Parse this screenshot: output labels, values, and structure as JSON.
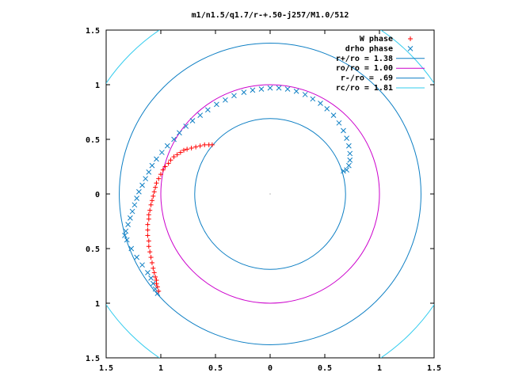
{
  "chart_data": {
    "type": "scatter",
    "title": "m1/n1.5/q1.7/r-+.50-j257/M1.0/512",
    "xlabel": "",
    "ylabel": "",
    "xlim": [
      -1.5,
      1.5
    ],
    "ylim": [
      -1.5,
      1.5
    ],
    "x_ticks": [
      -1.5,
      -1,
      -0.5,
      0,
      0.5,
      1,
      1.5
    ],
    "y_ticks": [
      -1.5,
      -1,
      -0.5,
      0,
      0.5,
      1,
      1.5
    ],
    "x_tick_labels": [
      "1.5",
      "1",
      "0.5",
      "0",
      "0.5",
      "1",
      "1.5"
    ],
    "y_tick_labels": [
      "1.5",
      "1",
      "0.5",
      "0",
      "0.5",
      "1",
      "1.5"
    ],
    "grid": false,
    "legend_position": "top-right",
    "series": [
      {
        "name": "W phase",
        "kind": "points",
        "marker": "plus",
        "color": "#ff0000",
        "points": [
          [
            -1.02,
            -0.89
          ],
          [
            -1.03,
            -0.85
          ],
          [
            -1.04,
            -0.82
          ],
          [
            -1.04,
            -0.79
          ],
          [
            -1.05,
            -0.76
          ],
          [
            -1.06,
            -0.72
          ],
          [
            -1.07,
            -0.68
          ],
          [
            -1.08,
            -0.63
          ],
          [
            -1.09,
            -0.58
          ],
          [
            -1.1,
            -0.53
          ],
          [
            -1.11,
            -0.48
          ],
          [
            -1.11,
            -0.43
          ],
          [
            -1.12,
            -0.38
          ],
          [
            -1.12,
            -0.33
          ],
          [
            -1.12,
            -0.28
          ],
          [
            -1.11,
            -0.23
          ],
          [
            -1.11,
            -0.19
          ],
          [
            -1.1,
            -0.15
          ],
          [
            -1.09,
            -0.1
          ],
          [
            -1.08,
            -0.06
          ],
          [
            -1.07,
            -0.02
          ],
          [
            -1.06,
            0.02
          ],
          [
            -1.05,
            0.06
          ],
          [
            -1.04,
            0.1
          ],
          [
            -1.02,
            0.14
          ],
          [
            -1.0,
            0.18
          ],
          [
            -0.98,
            0.22
          ],
          [
            -0.96,
            0.25
          ],
          [
            -0.93,
            0.28
          ],
          [
            -0.91,
            0.31
          ],
          [
            -0.88,
            0.34
          ],
          [
            -0.85,
            0.36
          ],
          [
            -0.82,
            0.38
          ],
          [
            -0.79,
            0.4
          ],
          [
            -0.76,
            0.41
          ],
          [
            -0.72,
            0.42
          ],
          [
            -0.68,
            0.43
          ],
          [
            -0.64,
            0.44
          ],
          [
            -0.6,
            0.45
          ],
          [
            -0.56,
            0.45
          ],
          [
            -0.53,
            0.45
          ]
        ]
      },
      {
        "name": "drho phase",
        "kind": "points",
        "marker": "cross",
        "color": "#0e7fc4",
        "points": [
          [
            -1.03,
            -0.91
          ],
          [
            -1.05,
            -0.87
          ],
          [
            -1.07,
            -0.82
          ],
          [
            -1.09,
            -0.77
          ],
          [
            -1.12,
            -0.72
          ],
          [
            -1.17,
            -0.65
          ],
          [
            -1.22,
            -0.58
          ],
          [
            -1.27,
            -0.5
          ],
          [
            -1.31,
            -0.42
          ],
          [
            -1.33,
            -0.38
          ],
          [
            -1.32,
            -0.34
          ],
          [
            -1.3,
            -0.28
          ],
          [
            -1.28,
            -0.22
          ],
          [
            -1.26,
            -0.16
          ],
          [
            -1.24,
            -0.1
          ],
          [
            -1.22,
            -0.04
          ],
          [
            -1.2,
            0.02
          ],
          [
            -1.17,
            0.08
          ],
          [
            -1.14,
            0.14
          ],
          [
            -1.11,
            0.2
          ],
          [
            -1.08,
            0.26
          ],
          [
            -1.04,
            0.32
          ],
          [
            -0.99,
            0.38
          ],
          [
            -0.94,
            0.44
          ],
          [
            -0.88,
            0.5
          ],
          [
            -0.83,
            0.56
          ],
          [
            -0.77,
            0.62
          ],
          [
            -0.71,
            0.67
          ],
          [
            -0.64,
            0.72
          ],
          [
            -0.57,
            0.77
          ],
          [
            -0.49,
            0.82
          ],
          [
            -0.41,
            0.86
          ],
          [
            -0.33,
            0.9
          ],
          [
            -0.24,
            0.93
          ],
          [
            -0.16,
            0.95
          ],
          [
            -0.08,
            0.96
          ],
          [
            0.0,
            0.97
          ],
          [
            0.08,
            0.97
          ],
          [
            0.16,
            0.96
          ],
          [
            0.24,
            0.94
          ],
          [
            0.32,
            0.91
          ],
          [
            0.39,
            0.87
          ],
          [
            0.46,
            0.83
          ],
          [
            0.52,
            0.78
          ],
          [
            0.58,
            0.72
          ],
          [
            0.63,
            0.65
          ],
          [
            0.67,
            0.58
          ],
          [
            0.7,
            0.51
          ],
          [
            0.72,
            0.44
          ],
          [
            0.73,
            0.37
          ],
          [
            0.73,
            0.31
          ],
          [
            0.72,
            0.26
          ],
          [
            0.7,
            0.22
          ],
          [
            0.67,
            0.21
          ]
        ]
      },
      {
        "name": "r+/ro = 1.38",
        "kind": "circle",
        "radius": 1.38,
        "color": "#0e7fc4"
      },
      {
        "name": "ro/ro = 1.00",
        "kind": "circle",
        "radius": 1.0,
        "color": "#cc00cc"
      },
      {
        "name": "r-/ro = .69",
        "kind": "circle",
        "radius": 0.69,
        "color": "#0e7fc4"
      },
      {
        "name": "rc/ro = 1.81",
        "kind": "circle",
        "radius": 1.81,
        "color": "#33ccee"
      }
    ]
  }
}
